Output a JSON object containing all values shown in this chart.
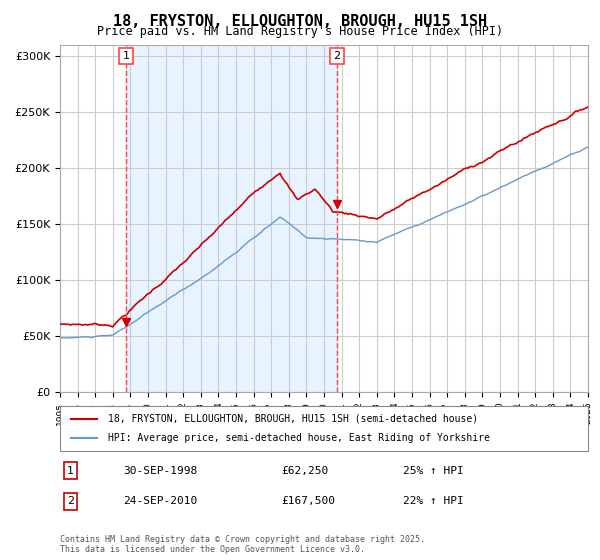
{
  "title": "18, FRYSTON, ELLOUGHTON, BROUGH, HU15 1SH",
  "subtitle": "Price paid vs. HM Land Registry's House Price Index (HPI)",
  "x_start_year": 1995,
  "x_end_year": 2025,
  "ylim": [
    0,
    310000
  ],
  "yticks": [
    0,
    50000,
    100000,
    150000,
    200000,
    250000,
    300000
  ],
  "ytick_labels": [
    "£0",
    "£50K",
    "£100K",
    "£150K",
    "£200K",
    "£250K",
    "£300K"
  ],
  "marker1_year": 1998.75,
  "marker1_value": 62250,
  "marker2_year": 2010.73,
  "marker2_value": 167500,
  "red_line_color": "#cc0000",
  "blue_line_color": "#6699cc",
  "bg_shaded_color": "#ddeeff",
  "grid_color": "#cccccc",
  "dashed_line_color": "#ff4444",
  "legend1": "18, FRYSTON, ELLOUGHTON, BROUGH, HU15 1SH (semi-detached house)",
  "legend2": "HPI: Average price, semi-detached house, East Riding of Yorkshire",
  "note1_box": "1",
  "note2_box": "2",
  "note1_date": "30-SEP-1998",
  "note1_price": "£62,250",
  "note1_pct": "25% ↑ HPI",
  "note2_date": "24-SEP-2010",
  "note2_price": "£167,500",
  "note2_pct": "22% ↑ HPI",
  "copyright": "Contains HM Land Registry data © Crown copyright and database right 2025.\nThis data is licensed under the Open Government Licence v3.0."
}
